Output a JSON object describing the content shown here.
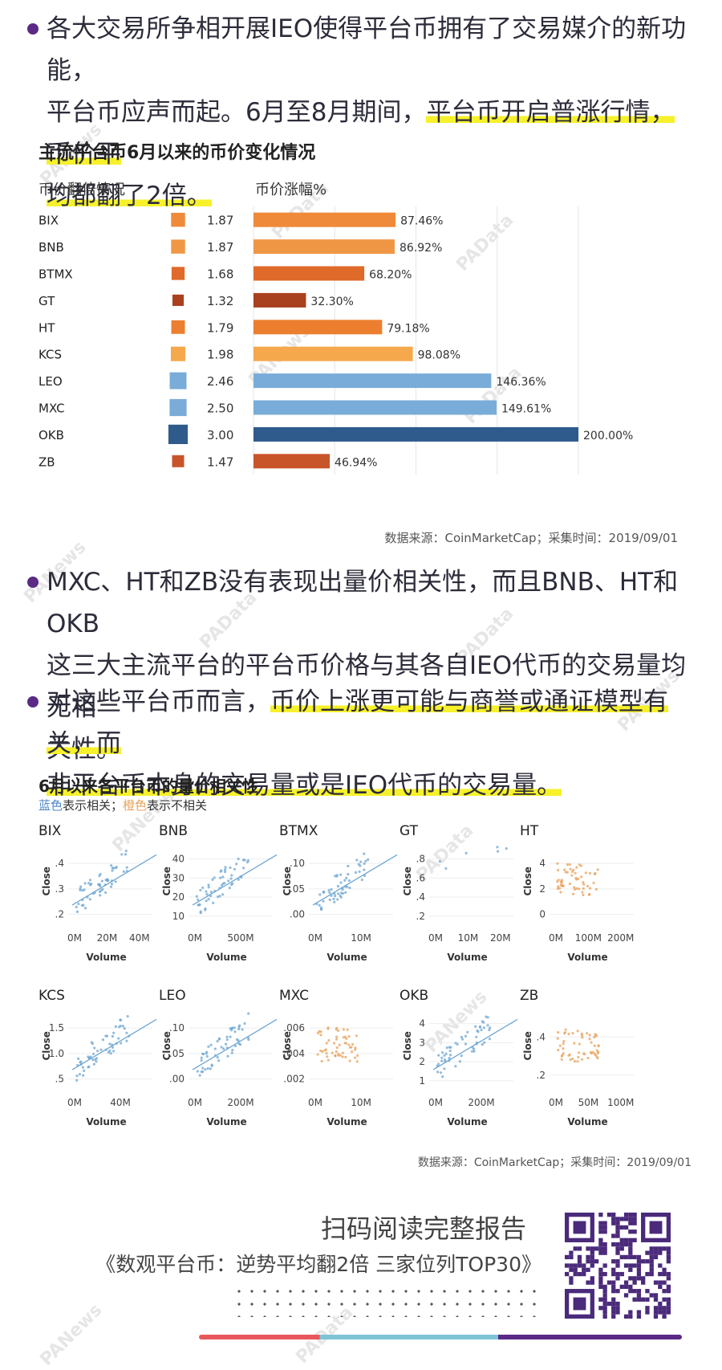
{
  "bullets": {
    "b1": {
      "line1": "各大交易所争相开展IEO使得平台币拥有了交易媒介的新功能，",
      "line2a": "平台币应声而起。6月至8月期间，",
      "line2b": "平台币开启普涨行情，币价平",
      "line3": "均都翻了2倍。"
    },
    "b2": {
      "line1": "MXC、HT和ZB没有表现出量价相关性，而且BNB、HT和OKB",
      "line2": "这三大主流平台的平台币价格与其各自IEO代币的交易量均无相",
      "line3": "关性。"
    },
    "b3": {
      "line1a": "对这些平台币而言，",
      "line1b": "币价上涨更可能与商誉或通证模型有关，而",
      "line2": "非平台币本身的交易量或是IEO代币的交易量。"
    }
  },
  "chart1": {
    "title": "主流平台币6月以来的币价变化情况",
    "left_header": "币价翻倍情况",
    "right_header": "币价涨幅%",
    "source": "数据来源：CoinMarketCap；采集时间：2019/09/01"
  },
  "chart2": {
    "title": "6月以来各平台币的量价相关性",
    "legend_blue": "蓝色",
    "legend_mid": "表示相关；",
    "legend_orange": "橙色",
    "legend_end": "表示不相关",
    "xlabel": "Volume",
    "ylabel": "Close",
    "source": "数据来源：CoinMarketCap；采集时间：2019/09/01"
  },
  "footer": {
    "cta": "扫码阅读完整报告",
    "report": "《数观平台币：逆势平均翻2倍 三家位列TOP30》"
  },
  "watermarks": [
    "PANews",
    "PAData"
  ],
  "colors": {
    "purple": "#5b2a86",
    "highlight": "#f6f12a",
    "blue": "#6ea6d2",
    "orange": "#e8a25c"
  },
  "chart_data": [
    {
      "type": "bar",
      "title": "主流平台币6月以来的币价变化情况",
      "categories": [
        "BIX",
        "BNB",
        "BTMX",
        "GT",
        "HT",
        "KCS",
        "LEO",
        "MXC",
        "OKB",
        "ZB"
      ],
      "series": [
        {
          "name": "币价翻倍情况",
          "values": [
            1.87,
            1.87,
            1.68,
            1.32,
            1.79,
            1.98,
            2.46,
            2.5,
            3.0,
            1.47
          ]
        },
        {
          "name": "币价涨幅%",
          "values": [
            87.46,
            86.92,
            68.2,
            32.3,
            79.18,
            98.08,
            146.36,
            149.61,
            200.0,
            46.94
          ],
          "labels": [
            "87.46%",
            "86.92%",
            "68.20%",
            "32.30%",
            "79.18%",
            "98.08%",
            "146.36%",
            "149.61%",
            "200.00%",
            "46.94%"
          ]
        }
      ],
      "colors": [
        "#ef8a3a",
        "#f09745",
        "#e06a2a",
        "#a9401e",
        "#ec7f2f",
        "#f6a84c",
        "#79acd8",
        "#79acd8",
        "#2f5b8c",
        "#c8552a"
      ]
    },
    {
      "type": "scatter",
      "title": "6月以来各平台币的量价相关性",
      "xlabel": "Volume",
      "ylabel": "Close",
      "panels": [
        {
          "name": "BIX",
          "correlated": true,
          "x_ticks": [
            "0M",
            "20M",
            "40M"
          ],
          "y_ticks": [
            ".2",
            ".3",
            ".4"
          ],
          "xlim": [
            0,
            50
          ],
          "ylim": [
            0.1,
            0.42
          ]
        },
        {
          "name": "BNB",
          "correlated": true,
          "x_ticks": [
            "0M",
            "500M"
          ],
          "y_ticks": [
            "10",
            "20",
            "30",
            "40"
          ],
          "xlim": [
            0,
            800
          ],
          "ylim": [
            5,
            42
          ]
        },
        {
          "name": "BTMX",
          "correlated": true,
          "x_ticks": [
            "0M",
            "10M"
          ],
          "y_ticks": [
            ".00",
            ".05",
            ".10"
          ],
          "xlim": [
            0,
            14
          ],
          "ylim": [
            0,
            0.14
          ]
        },
        {
          "name": "GT",
          "correlated": true,
          "x_ticks": [
            "0M",
            "10M",
            "20M"
          ],
          "y_ticks": [
            ".2",
            ".4",
            ".6",
            ".8"
          ],
          "xlim": [
            0,
            25
          ],
          "ylim": [
            0.1,
            0.9
          ]
        },
        {
          "name": "HT",
          "correlated": false,
          "x_ticks": [
            "0M",
            "100M",
            "200M"
          ],
          "y_ticks": [
            "0",
            "2",
            "4"
          ],
          "xlim": [
            0,
            220
          ],
          "ylim": [
            0,
            5
          ]
        },
        {
          "name": "KCS",
          "correlated": true,
          "x_ticks": [
            "0M",
            "40M"
          ],
          "y_ticks": [
            ".5",
            "1.0",
            "1.5"
          ],
          "xlim": [
            0,
            55
          ],
          "ylim": [
            0.3,
            1.8
          ]
        },
        {
          "name": "LEO",
          "correlated": true,
          "x_ticks": [
            "0M",
            "200M"
          ],
          "y_ticks": [
            ".00",
            ".05",
            ".10"
          ],
          "xlim": [
            0,
            300
          ],
          "ylim": [
            0,
            0.11
          ]
        },
        {
          "name": "MXC",
          "correlated": false,
          "x_ticks": [
            "0M",
            "10M"
          ],
          "y_ticks": [
            ".002",
            ".004",
            ".006"
          ],
          "xlim": [
            0,
            14
          ],
          "ylim": [
            0.001,
            0.0072
          ]
        },
        {
          "name": "OKB",
          "correlated": true,
          "x_ticks": [
            "0M",
            "200M"
          ],
          "y_ticks": [
            "1",
            "2",
            "3",
            "4"
          ],
          "xlim": [
            0,
            350
          ],
          "ylim": [
            0.6,
            4.3
          ]
        },
        {
          "name": "ZB",
          "correlated": false,
          "x_ticks": [
            "0M",
            "50M",
            "100M"
          ],
          "y_ticks": [
            ".2",
            ".4"
          ],
          "xlim": [
            0,
            120
          ],
          "ylim": [
            0.15,
            0.45
          ]
        }
      ]
    }
  ]
}
